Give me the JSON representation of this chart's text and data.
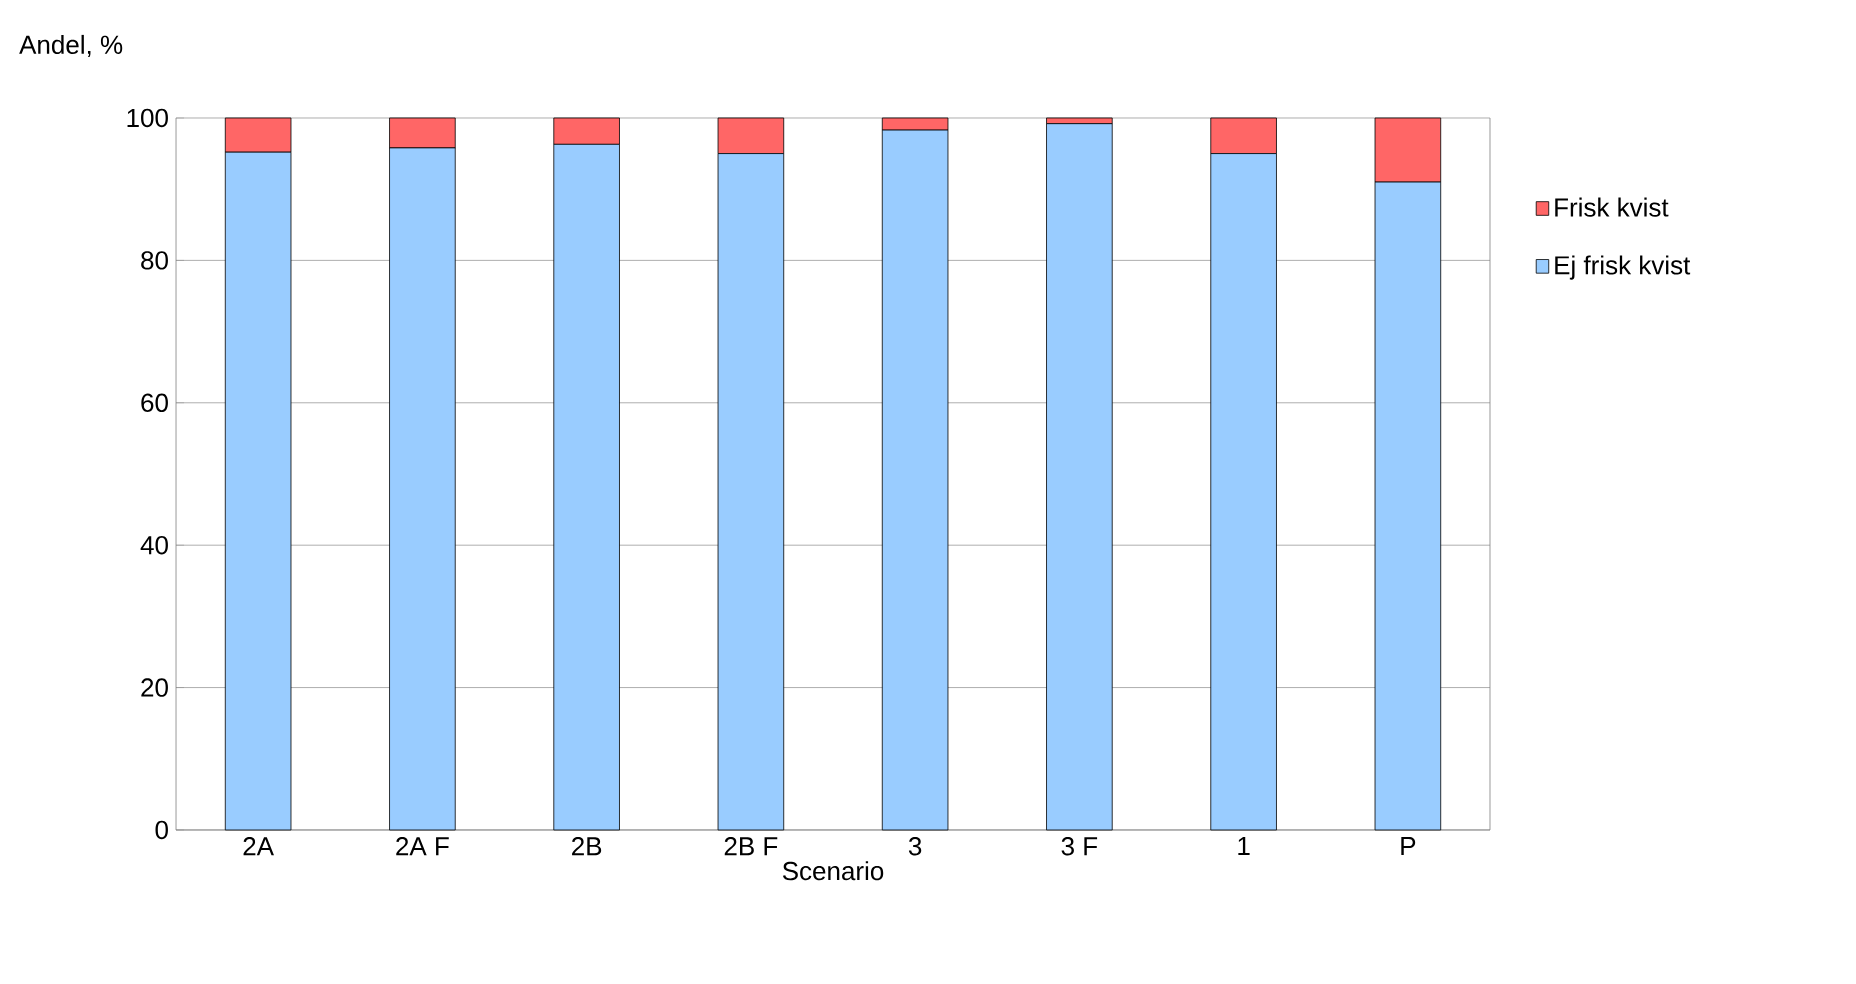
{
  "chart_data": {
    "type": "bar",
    "stacked": true,
    "ylabel": "Andel, %",
    "xlabel": "Scenario",
    "categories": [
      "2A",
      "2A F",
      "2B",
      "2B F",
      "3",
      "3 F",
      "1",
      "P"
    ],
    "series": [
      {
        "name": "Ej frisk kvist",
        "color": "#99ccff",
        "values": [
          95.2,
          95.8,
          96.3,
          95.0,
          98.3,
          99.2,
          95.0,
          91.0
        ]
      },
      {
        "name": "Frisk kvist",
        "color": "#ff6666",
        "values": [
          4.8,
          4.2,
          3.7,
          5.0,
          1.7,
          0.8,
          5.0,
          9.0
        ]
      }
    ],
    "ylim": [
      0,
      100
    ],
    "yticks": [
      0,
      20,
      40,
      60,
      80,
      100
    ],
    "grid": "y",
    "legend": "right"
  }
}
